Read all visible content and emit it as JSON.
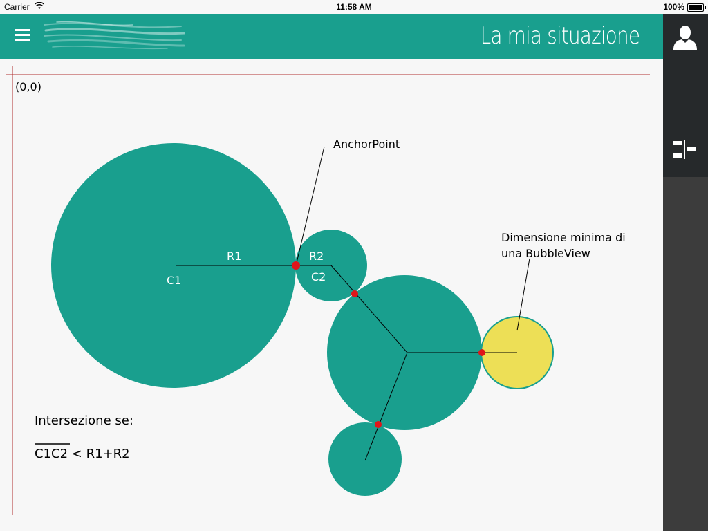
{
  "status_bar": {
    "carrier": "Carrier",
    "time": "11:58 AM",
    "battery": "100%"
  },
  "navbar": {
    "title": "La mia situazione",
    "menu_icon": "hamburger-icon",
    "color": "#199f8e"
  },
  "sidebar": {
    "profile_icon": "user-profile-icon",
    "align_icon": "align-bars-icon"
  },
  "diagram": {
    "origin": "(0,0)",
    "anchor_point": "AnchorPoint",
    "r1": "R1",
    "c1": "C1",
    "r2": "R2",
    "c2": "C2",
    "min_size_line1": "Dimensione minima di",
    "min_size_line2": "una BubbleView",
    "intersection_title": "Intersezione  se:",
    "formula_overline": "C1C2",
    "formula_rest": " < R1+R2",
    "bubble_color": "#199f8e",
    "min_bubble_color": "#eddf56",
    "point_color": "#e0151a",
    "axis_color": "#b03030"
  }
}
